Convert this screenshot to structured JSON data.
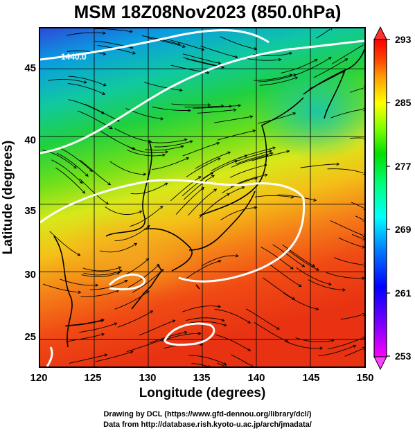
{
  "title": "MSM 18Z08Nov2023 (850.0hPa)",
  "map": {
    "projection": "lat-lon",
    "lon_range": [
      120,
      150
    ],
    "lat_range": [
      23,
      48
    ],
    "field": "temperature",
    "overlay": "streamlines",
    "contour_label": "1440.0"
  },
  "x_axis": {
    "label": "Longitude (degrees)",
    "ticks": [
      "120",
      "125",
      "130",
      "135",
      "140",
      "145",
      "150"
    ]
  },
  "y_axis": {
    "label": "Latitude  (degrees)",
    "ticks": [
      "25",
      "30",
      "35",
      "40",
      "45"
    ]
  },
  "colorbar": {
    "ticks": [
      "293",
      "285",
      "277",
      "269",
      "261",
      "253"
    ],
    "range": [
      253,
      293
    ],
    "colors": [
      "#ff00ff",
      "#8000ff",
      "#0000ff",
      "#0080ff",
      "#00ffff",
      "#00ff80",
      "#00e000",
      "#80ff00",
      "#ffff00",
      "#ffa000",
      "#ff4000",
      "#ff0000"
    ]
  },
  "credits": {
    "drawing": "Drawing by DCL (https://www.gfd-dennou.org/library/dcl/)",
    "data": "Data from http://database.rish.kyoto-u.ac.jp/arch/jmadata/"
  }
}
